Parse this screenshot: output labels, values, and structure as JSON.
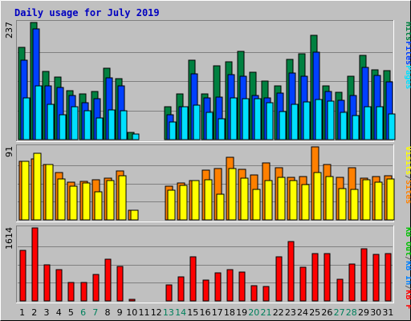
{
  "chart_data": {
    "type": "bar",
    "title": "Daily usage for July 2019",
    "days": [
      "1",
      "2",
      "3",
      "4",
      "5",
      "6",
      "7",
      "8",
      "9",
      "10",
      "11",
      "12",
      "13",
      "14",
      "15",
      "16",
      "17",
      "18",
      "19",
      "20",
      "21",
      "22",
      "23",
      "24",
      "25",
      "26",
      "27",
      "28",
      "29",
      "30",
      "31"
    ],
    "weekend_days": [
      "6",
      "7",
      "13",
      "14",
      "20",
      "21",
      "27",
      "28"
    ],
    "colors": {
      "hits": "#008040",
      "files": "#0040ff",
      "pages": "#00e0ff",
      "visits": "#ffff00",
      "sites": "#ff8000",
      "kb_in": "#00c000",
      "kb_out": "#0080ff",
      "kb_f": "#ff0000",
      "weekday_label": "#000000",
      "weekend_label": "#00805c"
    },
    "panels": [
      {
        "max_label": "237",
        "ylim": [
          0,
          237
        ],
        "right_legend": [
          {
            "text": "Pages",
            "color": "#00e0ff"
          },
          {
            "text": "Files",
            "color": "#0040ff"
          },
          {
            "text": "Hits",
            "color": "#008040"
          }
        ],
        "series": [
          {
            "name": "Hits",
            "color": "#008040",
            "values": [
              186,
              237,
              138,
              127,
              99,
              93,
              98,
              145,
              124,
              15,
              0,
              0,
              67,
              92,
              160,
              93,
              150,
              157,
              179,
              137,
              119,
              109,
              163,
              173,
              211,
              108,
              95,
              128,
              171,
              141,
              139
            ]
          },
          {
            "name": "Files",
            "color": "#0040ff",
            "values": [
              160,
              224,
              109,
              105,
              89,
              74,
              83,
              125,
              108,
              0,
              0,
              0,
              50,
              66,
              133,
              85,
              86,
              131,
              128,
              89,
              84,
              94,
              135,
              128,
              177,
              97,
              79,
              89,
              146,
              130,
              117
            ]
          },
          {
            "name": "Pages",
            "color": "#00e0ff",
            "values": [
              84,
              109,
              71,
              50,
              67,
              58,
              44,
              60,
              59,
              11,
              0,
              0,
              36,
              66,
              70,
              56,
              42,
              84,
              82,
              83,
              75,
              57,
              72,
              77,
              81,
              78,
              55,
              49,
              67,
              67,
              52
            ]
          }
        ]
      },
      {
        "max_label": "91",
        "ylim": [
          0,
          91
        ],
        "right_legend": [
          {
            "text": "Sites",
            "color": "#ff8000"
          },
          {
            "text": "/",
            "color": "#606060"
          },
          {
            "text": "Visits",
            "color": "#ffff00"
          }
        ],
        "series": [
          {
            "name": "Sites",
            "color": "#ff8000",
            "values": [
              73,
              76,
              69,
              59,
              47,
              48,
              50,
              52,
              61,
              12,
              0,
              0,
              42,
              46,
              49,
              62,
              64,
              78,
              63,
              56,
              71,
              65,
              53,
              54,
              91,
              69,
              53,
              65,
              52,
              54,
              55
            ]
          },
          {
            "name": "Visits",
            "color": "#ffff00",
            "values": [
              73,
              83,
              69,
              51,
              42,
              46,
              35,
              49,
              55,
              12,
              0,
              0,
              37,
              43,
              49,
              50,
              32,
              64,
              52,
              38,
              49,
              53,
              49,
              44,
              59,
              54,
              39,
              38,
              50,
              47,
              51
            ]
          }
        ]
      },
      {
        "max_label": "1614",
        "ylim": [
          0,
          1614
        ],
        "right_legend": [
          {
            "text": "KB F",
            "color": "#ff0000"
          },
          {
            "text": "/",
            "color": "#606060"
          },
          {
            "text": "KB In",
            "color": "#0080ff"
          },
          {
            "text": "/",
            "color": "#606060"
          },
          {
            "text": "KB Out",
            "color": "#00c000"
          }
        ],
        "series": [
          {
            "name": "KB F",
            "color": "#ff0000",
            "values": [
              1117,
              1614,
              799,
              694,
              405,
              405,
              582,
              918,
              755,
              43,
              0,
              0,
              362,
              540,
              967,
              461,
              612,
              695,
              645,
              340,
              324,
              977,
              1312,
              752,
              1038,
              1038,
              482,
              819,
              1155,
              1030,
              1038
            ]
          }
        ]
      }
    ]
  }
}
